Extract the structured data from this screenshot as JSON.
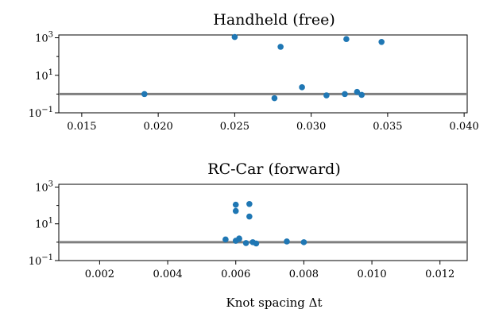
{
  "chart_data": [
    {
      "type": "scatter",
      "title": "Handheld (free)",
      "xlabel": "",
      "ylabel": "",
      "xlim": [
        0.0135,
        0.0402
      ],
      "ylim_log10": [
        -1,
        3.15
      ],
      "yscale": "log",
      "grid": false,
      "x_ticks": [
        "0.015",
        "0.020",
        "0.025",
        "0.030",
        "0.035",
        "0.040"
      ],
      "x_tick_values": [
        0.015,
        0.02,
        0.025,
        0.03,
        0.035,
        0.04
      ],
      "y_ticks": [
        {
          "base": "10",
          "exp": "3",
          "log": 3
        },
        {
          "base": "10",
          "exp": "1",
          "log": 1
        },
        {
          "base": "10",
          "exp": "−1",
          "log": -1
        }
      ],
      "reference_line": 1,
      "color": "#1f77b4",
      "reference_color": "#7f7f7f",
      "x": [
        0.0191,
        0.025,
        0.0276,
        0.028,
        0.0294,
        0.031,
        0.0322,
        0.0323,
        0.033,
        0.0333,
        0.0346
      ],
      "y": [
        1.0,
        1100,
        0.6,
        330,
        2.3,
        0.85,
        1.0,
        850,
        1.3,
        0.9,
        600
      ]
    },
    {
      "type": "scatter",
      "title": "RC-Car (forward)",
      "xlabel": "Knot spacing Δt",
      "ylabel": "",
      "xlim": [
        0.0008,
        0.0128
      ],
      "ylim_log10": [
        -1,
        3.15
      ],
      "yscale": "log",
      "grid": false,
      "x_ticks": [
        "0.002",
        "0.004",
        "0.006",
        "0.008",
        "0.010",
        "0.012"
      ],
      "x_tick_values": [
        0.002,
        0.004,
        0.006,
        0.008,
        0.01,
        0.012
      ],
      "y_ticks": [
        {
          "base": "10",
          "exp": "3",
          "log": 3
        },
        {
          "base": "10",
          "exp": "1",
          "log": 1
        },
        {
          "base": "10",
          "exp": "−1",
          "log": -1
        }
      ],
      "reference_line": 1,
      "color": "#1f77b4",
      "reference_color": "#7f7f7f",
      "x": [
        0.0057,
        0.006,
        0.006,
        0.006,
        0.0061,
        0.0061,
        0.0063,
        0.0064,
        0.0064,
        0.0065,
        0.0066,
        0.0075,
        0.008
      ],
      "y": [
        1.4,
        1.2,
        50,
        110,
        1.5,
        1.6,
        0.9,
        25,
        120,
        1.0,
        0.85,
        1.1,
        1.0
      ]
    }
  ]
}
